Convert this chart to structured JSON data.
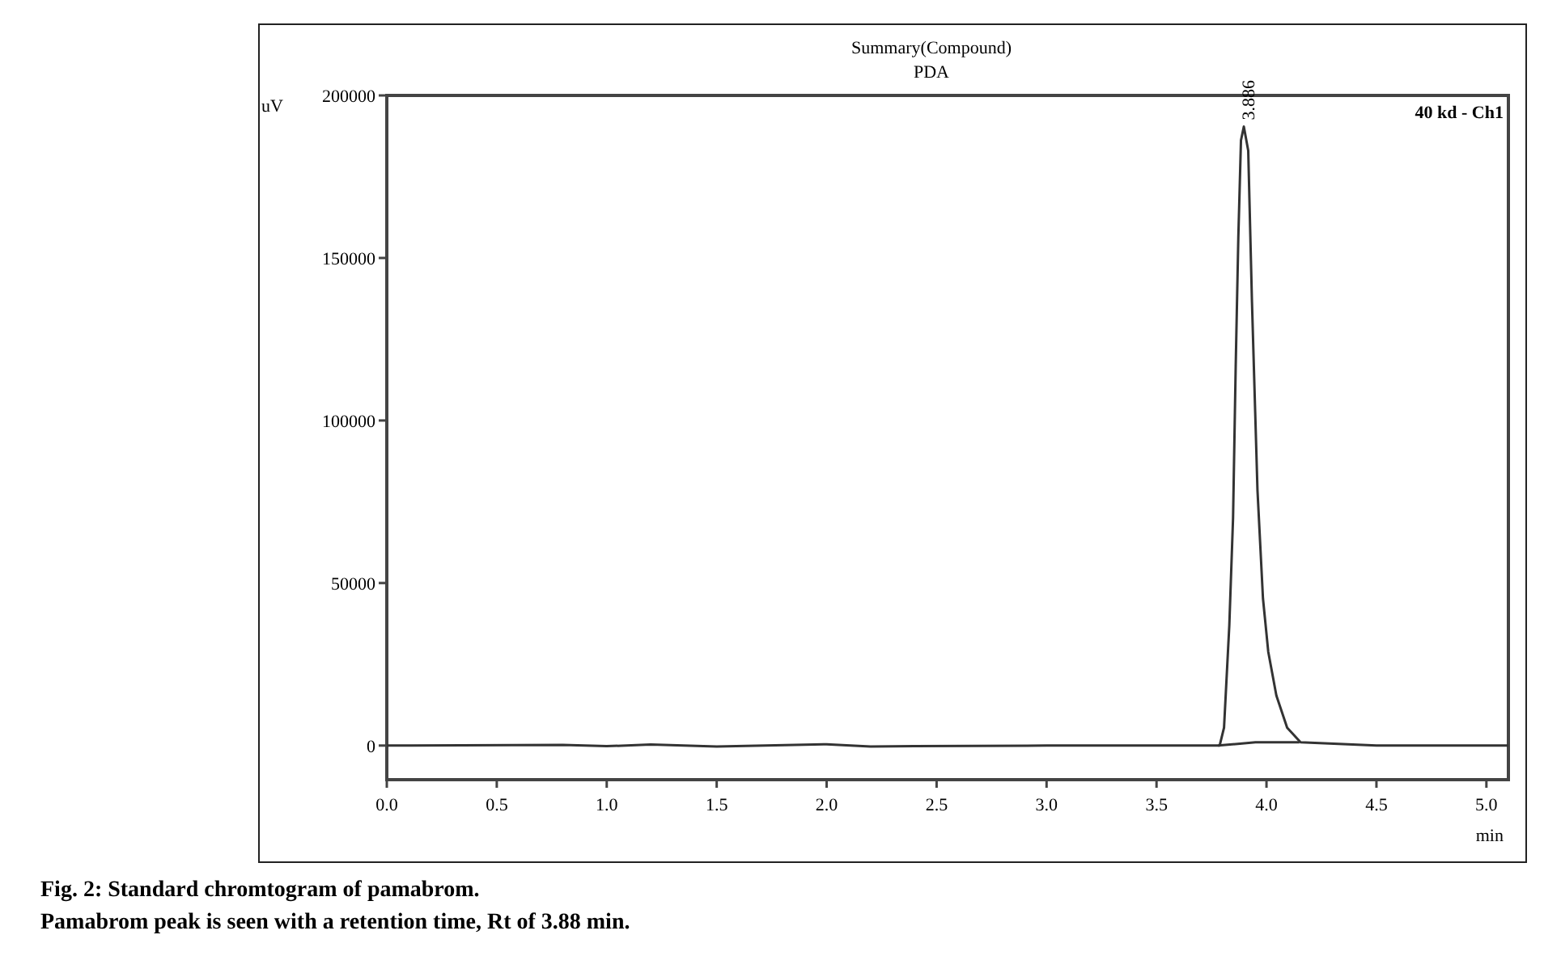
{
  "chart_data": {
    "type": "line",
    "title": "Summary(Compound)",
    "subtitle": "PDA",
    "xlabel": "min",
    "ylabel": "uV",
    "xlim": [
      0,
      5.1
    ],
    "ylim": [
      -10500,
      200000
    ],
    "xticks": [
      {
        "value": 0,
        "label": "0.0"
      },
      {
        "value": 0.5,
        "label": "0.5"
      },
      {
        "value": 1,
        "label": "1.0"
      },
      {
        "value": 1.5,
        "label": "1.5"
      },
      {
        "value": 2,
        "label": "2.0"
      },
      {
        "value": 2.5,
        "label": "2.5"
      },
      {
        "value": 3,
        "label": "3.0"
      },
      {
        "value": 3.5,
        "label": "3.5"
      },
      {
        "value": 4,
        "label": "4.0"
      },
      {
        "value": 4.5,
        "label": "4.5"
      },
      {
        "value": 5,
        "label": "5.0"
      }
    ],
    "yticks": [
      0,
      50000,
      100000,
      150000,
      200000
    ],
    "series": [
      {
        "color": "#333333",
        "x": [
          0,
          0.8,
          1.0,
          1.2,
          1.5,
          2.0,
          2.2,
          2.4,
          3.0,
          3.5,
          3.787,
          3.807,
          3.831,
          3.848,
          3.86,
          3.872,
          3.884,
          3.897,
          3.917,
          3.934,
          3.959,
          3.984,
          4.008,
          4.045,
          4.094,
          4.155,
          4.5,
          5.1
        ],
        "values": [
          0,
          200,
          -200,
          300,
          -300,
          400,
          -300,
          -200,
          0,
          0,
          0,
          5500,
          37000,
          70000,
          116600,
          156400,
          186200,
          190400,
          183000,
          136500,
          78600,
          45300,
          28900,
          15400,
          5500,
          1000,
          0,
          0
        ]
      },
      {
        "color": "#333333",
        "x": [
          3.78,
          3.95,
          4.15
        ],
        "values": [
          0,
          1000,
          1000
        ]
      }
    ],
    "annotations": [
      {
        "text": "3.886",
        "x": 3.886,
        "y": 190400
      },
      "40 kd - Ch1",
      "Fig. 2: Standard chromtogram of pamabrom.",
      "Pamabrom peak is seen with a retention time, Rt of 3.88 min."
    ]
  }
}
